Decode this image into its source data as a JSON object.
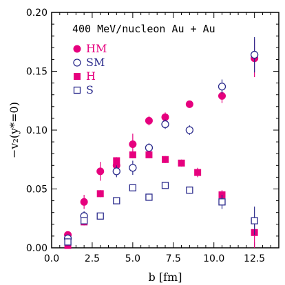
{
  "chart_data": {
    "type": "scatter",
    "title": "",
    "annotation": "400 MeV/nucleon Au + Au",
    "xlabel": "b [fm]",
    "ylabel": "−v₂(y*=0)",
    "xlim": [
      0.0,
      14.0
    ],
    "ylim": [
      0.0,
      0.2
    ],
    "xticks": [
      "0.0",
      "2.5",
      "5.0",
      "7.5",
      "10.0",
      "12.5"
    ],
    "yticks": [
      "0.00",
      "0.05",
      "0.10",
      "0.15",
      "0.20"
    ],
    "legend_position": "top-left",
    "series": [
      {
        "name": "HM",
        "marker": "filled-circle",
        "color": "#e6007e",
        "points": [
          {
            "x": 1.0,
            "y": 0.011,
            "err": 0.002
          },
          {
            "x": 2.0,
            "y": 0.039,
            "err": 0.006
          },
          {
            "x": 3.0,
            "y": 0.065,
            "err": 0.008
          },
          {
            "x": 4.0,
            "y": 0.07,
            "err": 0.005
          },
          {
            "x": 5.0,
            "y": 0.088,
            "err": 0.009
          },
          {
            "x": 6.0,
            "y": 0.108,
            "err": 0.004
          },
          {
            "x": 7.0,
            "y": 0.111,
            "err": 0.004
          },
          {
            "x": 8.5,
            "y": 0.122,
            "err": 0.003
          },
          {
            "x": 10.5,
            "y": 0.129,
            "err": 0.006
          },
          {
            "x": 12.5,
            "y": 0.161,
            "err": 0.016
          }
        ]
      },
      {
        "name": "SM",
        "marker": "open-circle",
        "color": "#2b2b8c",
        "points": [
          {
            "x": 1.0,
            "y": 0.008,
            "err": 0.002
          },
          {
            "x": 2.0,
            "y": 0.027,
            "err": 0.004
          },
          {
            "x": 4.0,
            "y": 0.065,
            "err": 0.005
          },
          {
            "x": 5.0,
            "y": 0.068,
            "err": 0.006
          },
          {
            "x": 6.0,
            "y": 0.085,
            "err": 0.004
          },
          {
            "x": 7.0,
            "y": 0.105,
            "err": 0.004
          },
          {
            "x": 8.5,
            "y": 0.1,
            "err": 0.004
          },
          {
            "x": 10.5,
            "y": 0.137,
            "err": 0.006
          },
          {
            "x": 12.5,
            "y": 0.164,
            "err": 0.015
          }
        ]
      },
      {
        "name": "H",
        "marker": "filled-square",
        "color": "#e6007e",
        "points": [
          {
            "x": 1.0,
            "y": 0.002,
            "err": 0.002
          },
          {
            "x": 2.0,
            "y": 0.022,
            "err": 0.003
          },
          {
            "x": 3.0,
            "y": 0.046,
            "err": 0.003
          },
          {
            "x": 4.0,
            "y": 0.074,
            "err": 0.003
          },
          {
            "x": 5.0,
            "y": 0.079,
            "err": 0.003
          },
          {
            "x": 6.0,
            "y": 0.079,
            "err": 0.003
          },
          {
            "x": 7.0,
            "y": 0.075,
            "err": 0.003
          },
          {
            "x": 8.0,
            "y": 0.072,
            "err": 0.003
          },
          {
            "x": 9.0,
            "y": 0.064,
            "err": 0.004
          },
          {
            "x": 10.5,
            "y": 0.045,
            "err": 0.004
          },
          {
            "x": 12.5,
            "y": 0.013,
            "err": 0.013
          }
        ]
      },
      {
        "name": "S",
        "marker": "open-square",
        "color": "#2b2b8c",
        "points": [
          {
            "x": 1.0,
            "y": 0.005,
            "err": 0.003
          },
          {
            "x": 2.0,
            "y": 0.023,
            "err": 0.003
          },
          {
            "x": 3.0,
            "y": 0.027,
            "err": 0.002
          },
          {
            "x": 4.0,
            "y": 0.04,
            "err": 0.002
          },
          {
            "x": 5.0,
            "y": 0.051,
            "err": 0.002
          },
          {
            "x": 6.0,
            "y": 0.043,
            "err": 0.003
          },
          {
            "x": 7.0,
            "y": 0.053,
            "err": 0.003
          },
          {
            "x": 8.5,
            "y": 0.049,
            "err": 0.003
          },
          {
            "x": 10.5,
            "y": 0.039,
            "err": 0.006
          },
          {
            "x": 12.5,
            "y": 0.023,
            "err": 0.012
          }
        ]
      }
    ]
  }
}
